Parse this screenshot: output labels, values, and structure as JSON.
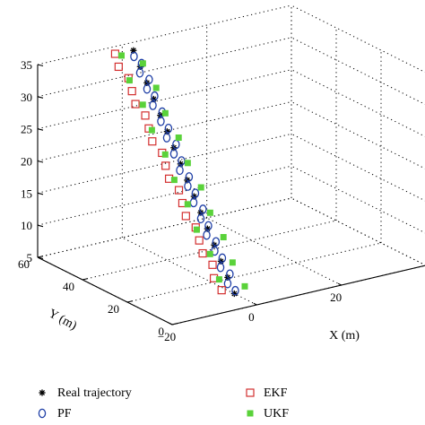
{
  "chart_data": {
    "type": "scatter",
    "projection": "3d",
    "grid": true,
    "legend_placement": "bottom",
    "xlabel": "X (m)",
    "ylabel": "Y (m)",
    "zlabel": "",
    "xlim": [
      -20,
      40
    ],
    "ylim": [
      0,
      60
    ],
    "zlim": [
      5,
      35
    ],
    "x_ticks": [
      "−20",
      "0",
      "20"
    ],
    "y_ticks": [
      "0",
      "20",
      "40",
      "60"
    ],
    "z_ticks": [
      "5",
      "10",
      "15",
      "20",
      "25",
      "30",
      "35"
    ],
    "series": [
      {
        "name": "Real trajectory",
        "marker": "asterisk",
        "color": "#000000",
        "points": [
          [
            0,
            10,
            5
          ],
          [
            0,
            13,
            7
          ],
          [
            0,
            16,
            9
          ],
          [
            0,
            19,
            11
          ],
          [
            0,
            22,
            13
          ],
          [
            0,
            25,
            15
          ],
          [
            0,
            28,
            17
          ],
          [
            0,
            31,
            19
          ],
          [
            0,
            34,
            21
          ],
          [
            0,
            37,
            23
          ],
          [
            0,
            40,
            25
          ],
          [
            0,
            43,
            27
          ],
          [
            0,
            46,
            29
          ],
          [
            0,
            49,
            31
          ],
          [
            0,
            52,
            33
          ],
          [
            0,
            55,
            35
          ]
        ]
      },
      {
        "name": "PF",
        "marker": "circle",
        "color": "#1f3fa6",
        "points": [
          [
            0.5,
            10.5,
            5.3
          ],
          [
            -0.5,
            12,
            6.3
          ],
          [
            0.8,
            13.5,
            7.3
          ],
          [
            -0.6,
            15,
            8.3
          ],
          [
            0.6,
            16.5,
            9.3
          ],
          [
            -0.4,
            18,
            10.3
          ],
          [
            0.7,
            19.5,
            11.3
          ],
          [
            -0.7,
            21,
            12.3
          ],
          [
            0.5,
            22.5,
            13.3
          ],
          [
            -0.5,
            24,
            14.3
          ],
          [
            0.8,
            25.5,
            15.3
          ],
          [
            -0.6,
            27,
            16.3
          ],
          [
            0.6,
            28.5,
            17.3
          ],
          [
            -0.4,
            30,
            18.3
          ],
          [
            0.7,
            31.5,
            19.3
          ],
          [
            -0.7,
            33,
            20.3
          ],
          [
            0.5,
            34.5,
            21.3
          ],
          [
            -0.5,
            36,
            22.3
          ],
          [
            0.8,
            37.5,
            23.3
          ],
          [
            -0.6,
            39,
            24.3
          ],
          [
            0.6,
            40.5,
            25.3
          ],
          [
            -0.4,
            42,
            26.3
          ],
          [
            0.7,
            43.5,
            27.3
          ],
          [
            -0.7,
            45,
            28.3
          ],
          [
            0.5,
            46.5,
            29.3
          ],
          [
            -0.5,
            48,
            30.3
          ],
          [
            0.8,
            49.5,
            31.3
          ],
          [
            -0.6,
            51,
            32.3
          ],
          [
            0.6,
            52.5,
            33.3
          ],
          [
            -0.4,
            54,
            34.3
          ]
        ]
      },
      {
        "name": "EKF",
        "marker": "square-open",
        "color": "#d32f2f",
        "points": [
          [
            -3,
            10,
            6
          ],
          [
            -3.5,
            12.5,
            7.5
          ],
          [
            -2.5,
            15,
            9
          ],
          [
            -3.5,
            17.5,
            10.5
          ],
          [
            -3,
            20,
            12
          ],
          [
            -2.5,
            22.5,
            13.5
          ],
          [
            -3.5,
            25,
            15
          ],
          [
            -3,
            27.5,
            16.5
          ],
          [
            -2.5,
            30,
            18
          ],
          [
            -3.5,
            32.5,
            19.5
          ],
          [
            -3,
            35,
            21
          ],
          [
            -2.5,
            37.5,
            22.5
          ],
          [
            -3.5,
            40,
            24
          ],
          [
            -3,
            42.5,
            25.5
          ],
          [
            -2.5,
            45,
            27
          ],
          [
            -3.5,
            47.5,
            28.5
          ],
          [
            -3,
            50,
            30
          ],
          [
            -2.5,
            52.5,
            31.5
          ],
          [
            -3.5,
            55,
            33
          ],
          [
            -3,
            57.5,
            34.5
          ]
        ]
      },
      {
        "name": "UKF",
        "marker": "square-filled",
        "color": "#5ad23a",
        "points": [
          [
            3,
            11,
            5.5
          ],
          [
            -2,
            13,
            7
          ],
          [
            2.5,
            15.5,
            8.5
          ],
          [
            -1.5,
            18,
            10
          ],
          [
            3,
            20.5,
            11.5
          ],
          [
            -2,
            23,
            13
          ],
          [
            2.5,
            25.5,
            14.5
          ],
          [
            -1.5,
            28,
            16
          ],
          [
            3,
            30.5,
            17.5
          ],
          [
            -2,
            33,
            19
          ],
          [
            2.5,
            35.5,
            20.5
          ],
          [
            -1.5,
            38,
            22
          ],
          [
            3,
            40.5,
            23.5
          ],
          [
            -2,
            43,
            25
          ],
          [
            2.5,
            45.5,
            26.5
          ],
          [
            -1.5,
            48,
            28
          ],
          [
            3,
            50.5,
            29.5
          ],
          [
            -2,
            53,
            31
          ],
          [
            2.5,
            55.5,
            32.5
          ],
          [
            -1.5,
            57.5,
            34
          ]
        ]
      }
    ]
  }
}
